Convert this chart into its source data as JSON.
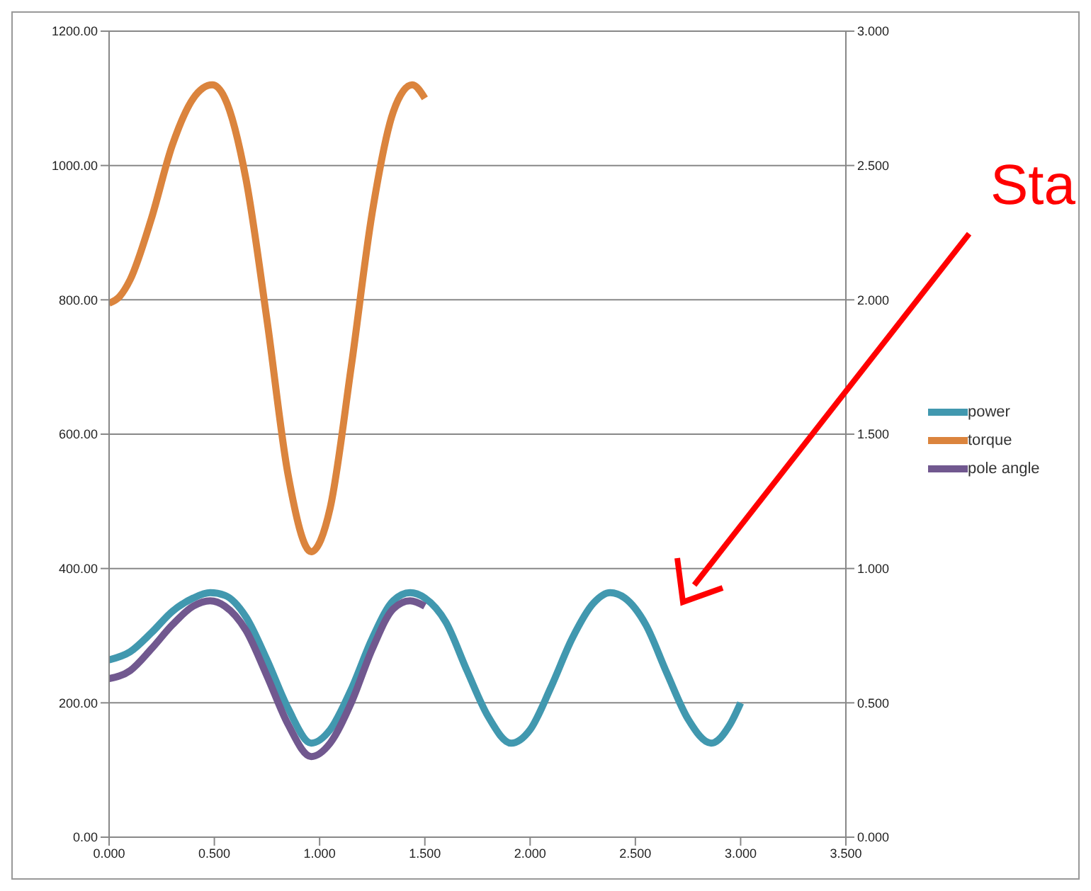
{
  "chart_data": {
    "type": "line",
    "xlim": [
      0,
      3.5
    ],
    "xticks": [
      {
        "value": 0,
        "label": "0.000"
      },
      {
        "value": 0.5,
        "label": "0.500"
      },
      {
        "value": 1,
        "label": "1.000"
      },
      {
        "value": 1.5,
        "label": "1.500"
      },
      {
        "value": 2,
        "label": "2.000"
      },
      {
        "value": 2.5,
        "label": "2.500"
      },
      {
        "value": 3,
        "label": "3.000"
      },
      {
        "value": 3.5,
        "label": "3.500"
      }
    ],
    "ylim": [
      0,
      1200
    ],
    "yticks": [
      {
        "value": 0,
        "label": "0.00"
      },
      {
        "value": 200,
        "label": "200.00"
      },
      {
        "value": 400,
        "label": "400.00"
      },
      {
        "value": 600,
        "label": "600.00"
      },
      {
        "value": 800,
        "label": "800.00"
      },
      {
        "value": 1000,
        "label": "1000.00"
      },
      {
        "value": 1200,
        "label": "1200.00"
      }
    ],
    "y2lim": [
      0,
      3
    ],
    "y2ticks": [
      {
        "value": 0,
        "label": "0.000"
      },
      {
        "value": 0.5,
        "label": "0.500"
      },
      {
        "value": 1,
        "label": "1.000"
      },
      {
        "value": 1.5,
        "label": "1.500"
      },
      {
        "value": 2,
        "label": "2.000"
      },
      {
        "value": 2.5,
        "label": "2.500"
      },
      {
        "value": 3,
        "label": "3.000"
      }
    ],
    "grid": "y",
    "legend": "right",
    "marker": "none",
    "line_style": "solid",
    "annotations": [
      "Sta"
    ],
    "series": [
      {
        "name": "power",
        "color": "#4198af",
        "axis": "y2",
        "x": [
          0,
          0.1,
          0.2,
          0.3,
          0.4,
          0.48,
          0.55,
          0.65,
          0.75,
          0.85,
          0.96,
          1.05,
          1.15,
          1.25,
          1.35,
          1.43,
          1.5,
          1.6,
          1.7,
          1.8,
          1.91,
          2.0,
          2.1,
          2.2,
          2.3,
          2.38,
          2.45,
          2.55,
          2.65,
          2.75,
          2.86,
          2.95,
          3.0
        ],
        "values": [
          0.66,
          0.69,
          0.76,
          0.84,
          0.89,
          0.91,
          0.9,
          0.82,
          0.66,
          0.48,
          0.35,
          0.4,
          0.55,
          0.74,
          0.88,
          0.91,
          0.89,
          0.8,
          0.62,
          0.45,
          0.35,
          0.4,
          0.56,
          0.74,
          0.87,
          0.91,
          0.89,
          0.79,
          0.61,
          0.44,
          0.35,
          0.42,
          0.5
        ]
      },
      {
        "name": "torque",
        "color": "#db843d",
        "x": [
          0,
          0.05,
          0.1,
          0.2,
          0.3,
          0.4,
          0.49,
          0.55,
          0.65,
          0.75,
          0.85,
          0.96,
          1.05,
          1.15,
          1.25,
          1.35,
          1.44,
          1.5
        ],
        "values": [
          795,
          805,
          830,
          920,
          1030,
          1100,
          1120,
          1100,
          980,
          770,
          540,
          425,
          490,
          700,
          930,
          1080,
          1120,
          1100
        ]
      },
      {
        "name": "pole angle",
        "color": "#71588f",
        "axis": "y2",
        "x": [
          0,
          0.1,
          0.2,
          0.3,
          0.4,
          0.48,
          0.55,
          0.65,
          0.75,
          0.85,
          0.96,
          1.05,
          1.15,
          1.25,
          1.35,
          1.43,
          1.5
        ],
        "values": [
          0.59,
          0.62,
          0.7,
          0.79,
          0.86,
          0.88,
          0.86,
          0.77,
          0.6,
          0.42,
          0.3,
          0.35,
          0.5,
          0.7,
          0.85,
          0.88,
          0.86
        ]
      }
    ]
  }
}
